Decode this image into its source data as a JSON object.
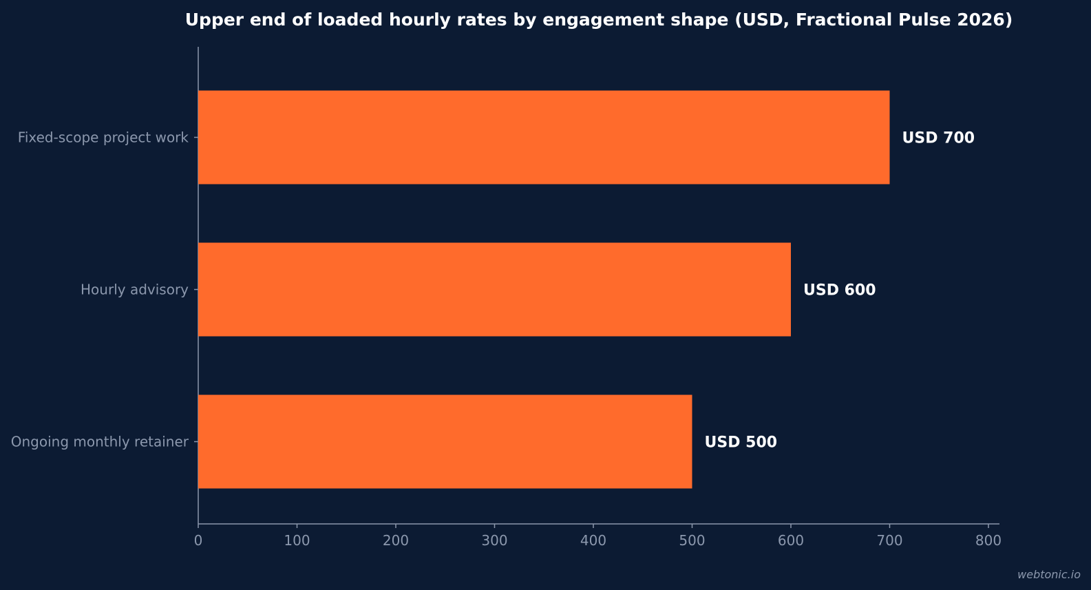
{
  "chart_data": {
    "type": "bar",
    "orientation": "horizontal",
    "title": "Upper end of loaded hourly rates by engagement shape (USD, Fractional Pulse 2026)",
    "xlabel": "",
    "ylabel": "",
    "categories": [
      "Fixed-scope project work",
      "Hourly advisory",
      "Ongoing monthly retainer"
    ],
    "values": [
      700,
      600,
      500
    ],
    "data_labels": [
      "USD 700",
      "USD 600",
      "USD 500"
    ],
    "xlim": [
      0,
      800
    ],
    "x_ticks": [
      0,
      100,
      200,
      300,
      400,
      500,
      600,
      700,
      800
    ],
    "grid": false,
    "legend": "none",
    "bar_color": "#ff6b2c",
    "background_color": "#0c1b33"
  },
  "watermark": "webtonic.io"
}
